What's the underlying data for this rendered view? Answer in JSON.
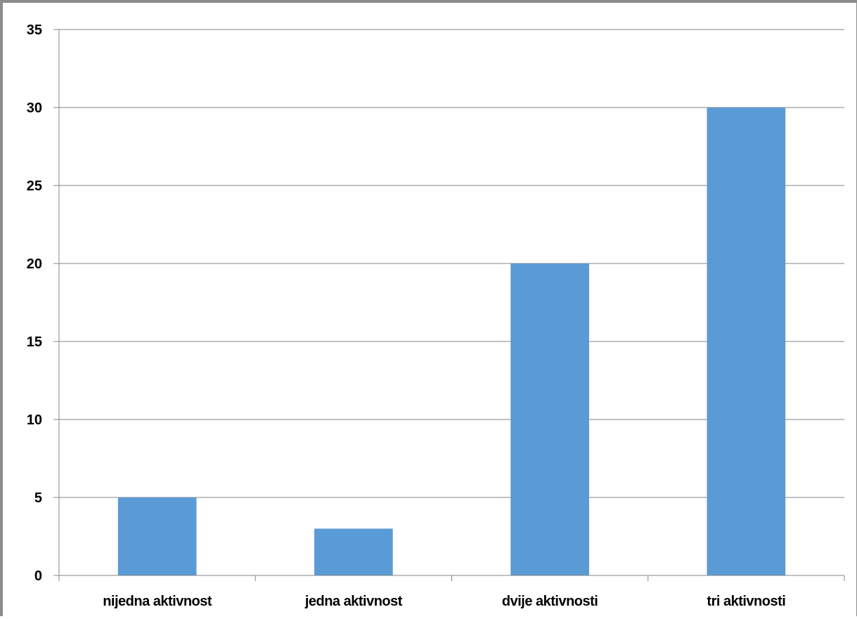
{
  "chart_data": {
    "type": "bar",
    "categories": [
      "nijedna aktivnost",
      "jedna aktivnost",
      "dvije aktivnosti",
      "tri aktivnosti"
    ],
    "values": [
      5,
      3,
      20,
      30
    ],
    "title": "",
    "xlabel": "",
    "ylabel": "",
    "ylim": [
      0,
      35
    ],
    "yticks": [
      0,
      5,
      10,
      15,
      20,
      25,
      30,
      35
    ],
    "grid": true,
    "legend": "none",
    "bar_color": "#5b9bd5",
    "grid_color": "#868686"
  }
}
